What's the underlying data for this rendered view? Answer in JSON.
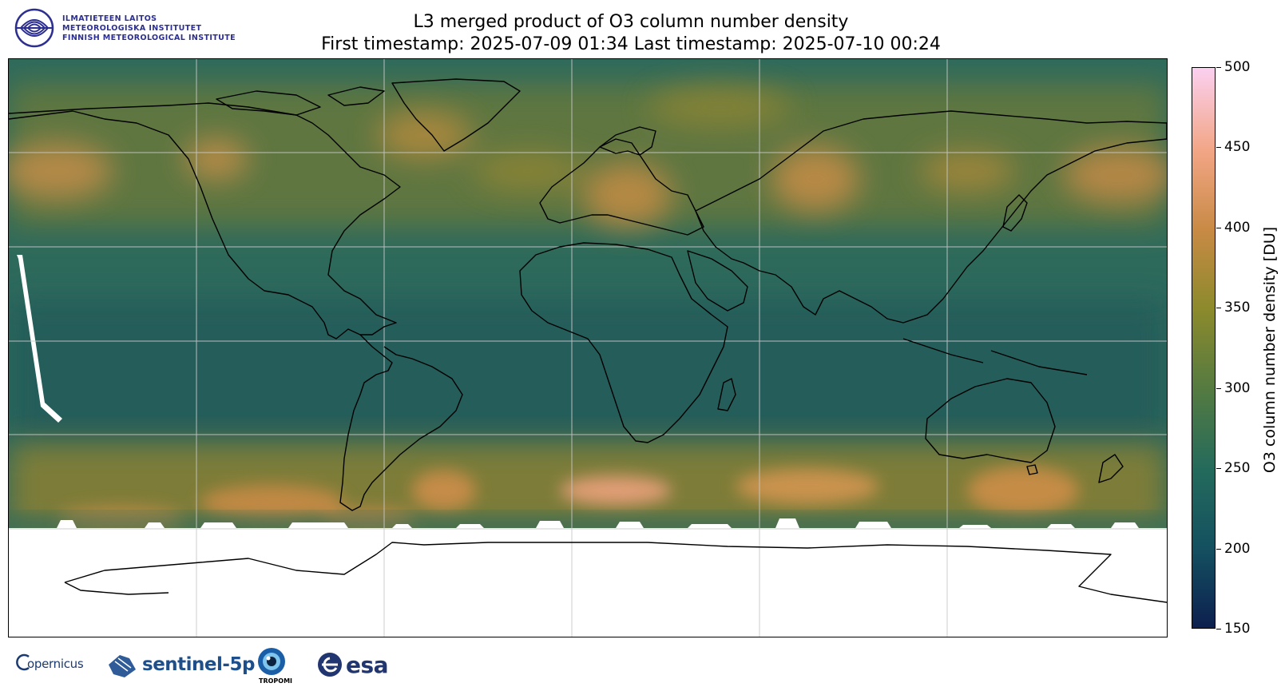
{
  "header": {
    "institute_lines": [
      "ILMATIETEEN LAITOS",
      "METEOROLOGISKA INSTITUTET",
      "FINNISH METEOROLOGICAL INSTITUTE"
    ],
    "title_line1": "L3 merged product of O3 column number density",
    "title_line2": "First timestamp: 2025-07-09 01:34   Last timestamp: 2025-07-10 00:24"
  },
  "map": {
    "projection": "plate carree",
    "gridlines": true,
    "no_data_color": "#ffffff",
    "coastlines_color": "#000000"
  },
  "colorbar": {
    "label": "O3 column number density [DU]",
    "min": 150,
    "max": 500,
    "ticks": [
      "500",
      "450",
      "400",
      "350",
      "300",
      "250",
      "200",
      "150"
    ],
    "colors": [
      "#0d1f4f",
      "#145060",
      "#236a5c",
      "#527a42",
      "#8c8a2c",
      "#c88a45",
      "#f2a584",
      "#fbd0f0"
    ]
  },
  "footer_logos": {
    "copernicus": "opernicus",
    "sentinel": "sentinel-5p",
    "tropomi": "TROPOMI",
    "esa": "esa"
  }
}
